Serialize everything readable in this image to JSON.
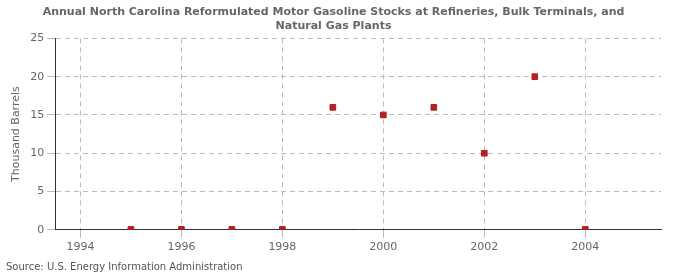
{
  "chart_data": {
    "type": "scatter",
    "title": "Annual North Carolina Reformulated Motor Gasoline Stocks at Refineries, Bulk Terminals, and\nNatural Gas Plants",
    "ylabel": "Thousand Barrels",
    "annotations": [
      "Source: U.S. Energy Information Administration"
    ],
    "x": [
      1995,
      1996,
      1997,
      1998,
      1999,
      2000,
      2001,
      2002,
      2003,
      2004
    ],
    "values": [
      0.05,
      0.05,
      0.05,
      0.05,
      16,
      15,
      16,
      10,
      20,
      0.05
    ],
    "color": "#b22222",
    "marker": "square",
    "xlim": [
      1993.5,
      2005.5
    ],
    "ylim": [
      0,
      25
    ],
    "xticks": [
      1994,
      1996,
      1998,
      2000,
      2002,
      2004
    ],
    "yticks": [
      0,
      5,
      10,
      15,
      20,
      25
    ],
    "grid": true
  }
}
